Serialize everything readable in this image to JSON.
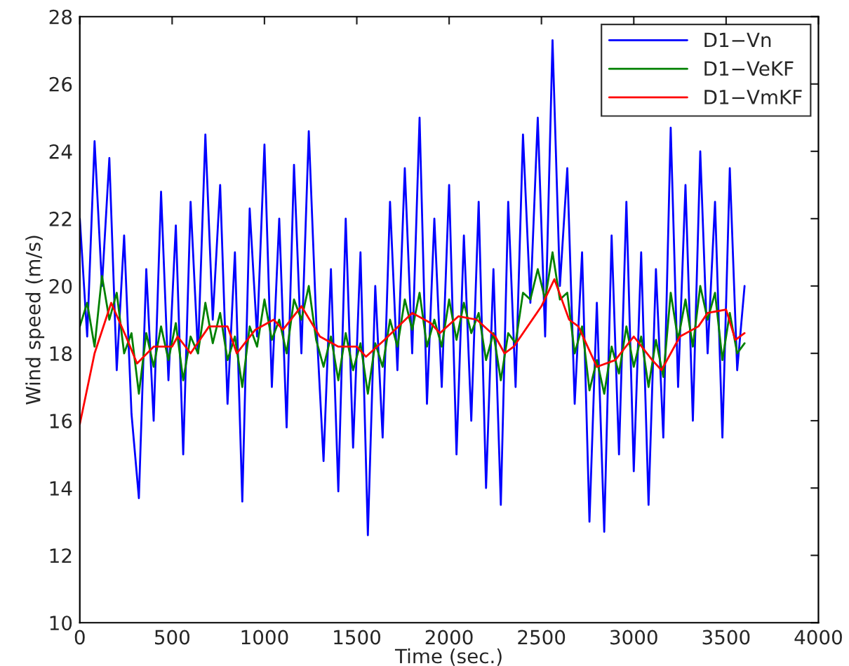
{
  "chart_data": {
    "type": "line",
    "xlabel": "Time (sec.)",
    "ylabel": "Wind speed (m/s)",
    "xlim": [
      0,
      4000
    ],
    "xticks": [
      0,
      500,
      1000,
      1500,
      2000,
      2500,
      3000,
      3500,
      4000
    ],
    "ylim": [
      10,
      28
    ],
    "yticks": [
      10,
      12,
      14,
      16,
      18,
      20,
      22,
      24,
      26,
      28
    ],
    "grid": false,
    "legend": "top right",
    "marker": "none",
    "line_style": "solid",
    "series": [
      {
        "name": "D1−Vn",
        "color": "#0000ff",
        "x": [
          0,
          40,
          80,
          120,
          160,
          200,
          240,
          280,
          320,
          360,
          400,
          440,
          480,
          520,
          560,
          600,
          640,
          680,
          720,
          760,
          800,
          840,
          880,
          920,
          960,
          1000,
          1040,
          1080,
          1120,
          1160,
          1200,
          1240,
          1280,
          1320,
          1360,
          1400,
          1440,
          1480,
          1520,
          1560,
          1600,
          1640,
          1680,
          1720,
          1760,
          1800,
          1840,
          1880,
          1920,
          1960,
          2000,
          2040,
          2080,
          2120,
          2160,
          2200,
          2240,
          2280,
          2320,
          2360,
          2400,
          2440,
          2480,
          2520,
          2560,
          2600,
          2640,
          2680,
          2720,
          2760,
          2800,
          2840,
          2880,
          2920,
          2960,
          3000,
          3040,
          3080,
          3120,
          3160,
          3200,
          3240,
          3280,
          3320,
          3360,
          3400,
          3440,
          3480,
          3520,
          3560,
          3600
        ],
        "values": [
          22.0,
          18.5,
          24.3,
          20.0,
          23.8,
          17.5,
          21.5,
          16.2,
          13.7,
          20.5,
          16.0,
          22.8,
          17.2,
          21.8,
          15.0,
          22.5,
          18.0,
          24.5,
          19.0,
          23.0,
          16.5,
          21.0,
          13.6,
          22.3,
          18.5,
          24.2,
          17.0,
          22.0,
          15.8,
          23.6,
          18.0,
          24.6,
          19.0,
          14.8,
          20.5,
          13.9,
          22.0,
          15.2,
          21.0,
          12.6,
          20.0,
          15.5,
          22.5,
          17.5,
          23.5,
          18.0,
          25.0,
          16.5,
          22.0,
          17.0,
          23.0,
          15.0,
          21.5,
          16.0,
          22.5,
          14.0,
          20.5,
          13.5,
          22.5,
          17.0,
          24.5,
          19.5,
          25.0,
          18.5,
          27.3,
          20.0,
          23.5,
          16.5,
          21.0,
          13.0,
          19.5,
          12.7,
          21.5,
          15.0,
          22.5,
          14.5,
          21.0,
          13.5,
          20.5,
          15.5,
          24.7,
          17.0,
          23.0,
          16.0,
          24.0,
          18.0,
          22.5,
          15.5,
          23.5,
          17.5,
          20.0
        ]
      },
      {
        "name": "D1−VeKF",
        "color": "#008000",
        "x": [
          0,
          40,
          80,
          120,
          160,
          200,
          240,
          280,
          320,
          360,
          400,
          440,
          480,
          520,
          560,
          600,
          640,
          680,
          720,
          760,
          800,
          840,
          880,
          920,
          960,
          1000,
          1040,
          1080,
          1120,
          1160,
          1200,
          1240,
          1280,
          1320,
          1360,
          1400,
          1440,
          1480,
          1520,
          1560,
          1600,
          1640,
          1680,
          1720,
          1760,
          1800,
          1840,
          1880,
          1920,
          1960,
          2000,
          2040,
          2080,
          2120,
          2160,
          2200,
          2240,
          2280,
          2320,
          2360,
          2400,
          2440,
          2480,
          2520,
          2560,
          2600,
          2640,
          2680,
          2720,
          2760,
          2800,
          2840,
          2880,
          2920,
          2960,
          3000,
          3040,
          3080,
          3120,
          3160,
          3200,
          3240,
          3280,
          3320,
          3360,
          3400,
          3440,
          3480,
          3520,
          3560,
          3600
        ],
        "values": [
          18.8,
          19.5,
          18.2,
          20.3,
          19.0,
          19.8,
          18.0,
          18.6,
          16.8,
          18.6,
          17.6,
          18.8,
          17.8,
          18.9,
          17.2,
          18.5,
          18.0,
          19.5,
          18.3,
          19.2,
          17.8,
          18.5,
          17.0,
          18.8,
          18.2,
          19.6,
          18.4,
          19.0,
          18.0,
          19.6,
          19.0,
          20.0,
          18.4,
          17.6,
          18.5,
          17.2,
          18.6,
          17.5,
          18.3,
          16.8,
          18.3,
          17.6,
          19.0,
          18.2,
          19.6,
          18.7,
          19.8,
          18.2,
          19.0,
          18.2,
          19.6,
          18.4,
          19.5,
          18.6,
          19.2,
          17.8,
          18.6,
          17.2,
          18.6,
          18.3,
          19.8,
          19.6,
          20.5,
          19.6,
          21.0,
          19.6,
          19.8,
          18.0,
          18.8,
          16.9,
          17.8,
          16.8,
          18.2,
          17.4,
          18.8,
          17.6,
          18.5,
          17.0,
          18.4,
          17.3,
          19.8,
          18.4,
          19.6,
          18.2,
          20.0,
          19.0,
          19.8,
          17.8,
          19.2,
          18.0,
          18.3
        ]
      },
      {
        "name": "D1−VmKF",
        "color": "#ff0000",
        "x": [
          0,
          80,
          170,
          250,
          310,
          400,
          500,
          530,
          600,
          700,
          800,
          850,
          950,
          1050,
          1100,
          1200,
          1300,
          1400,
          1500,
          1550,
          1650,
          1800,
          1900,
          1950,
          2050,
          2150,
          2250,
          2300,
          2350,
          2500,
          2570,
          2650,
          2700,
          2800,
          2900,
          3000,
          3100,
          3150,
          3250,
          3350,
          3400,
          3500,
          3550,
          3600
        ],
        "values": [
          15.9,
          18.0,
          19.5,
          18.5,
          17.7,
          18.2,
          18.2,
          18.5,
          18.0,
          18.8,
          18.8,
          18.0,
          18.7,
          19.0,
          18.7,
          19.4,
          18.5,
          18.2,
          18.2,
          17.9,
          18.4,
          19.2,
          18.9,
          18.6,
          19.1,
          19.0,
          18.5,
          18.0,
          18.2,
          19.4,
          20.2,
          19.0,
          18.8,
          17.6,
          17.8,
          18.5,
          17.8,
          17.5,
          18.5,
          18.8,
          19.2,
          19.3,
          18.4,
          18.6
        ]
      }
    ]
  }
}
